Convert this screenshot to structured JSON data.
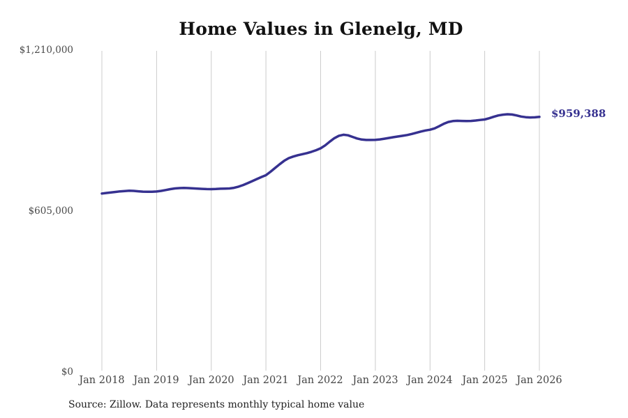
{
  "title": "Home Values in Glenelg, MD",
  "source_note": "Source: Zillow. Data represents monthly typical home value",
  "final_value_label": "$959,388",
  "colors": {
    "line": "#363190",
    "gridline": "#cccccc",
    "title_text": "#121212",
    "axis_text": "#4a4a4a",
    "background": "#ffffff"
  },
  "chart_data": {
    "type": "line",
    "title": "Home Values in Glenelg, MD",
    "series_name": "Monthly typical home value",
    "xlabel": "",
    "ylabel": "",
    "ylim": [
      0,
      1210000
    ],
    "grid": "vertical-only",
    "legend": "none",
    "line_color": "#363190",
    "final_value": 959388,
    "end_label": "$959,388",
    "y_ticks": [
      1210000,
      605000,
      0
    ],
    "y_tick_labels": [
      "$1,210,000",
      "$605,000",
      "$0"
    ],
    "x_tick_labels": [
      "Jan 2018",
      "Jan 2019",
      "Jan 2020",
      "Jan 2021",
      "Jan 2022",
      "Jan 2023",
      "Jan 2024",
      "Jan 2025",
      "Jan 2026"
    ],
    "x": [
      "2018-01",
      "2018-02",
      "2018-03",
      "2018-04",
      "2018-05",
      "2018-06",
      "2018-07",
      "2018-08",
      "2018-09",
      "2018-10",
      "2018-11",
      "2018-12",
      "2019-01",
      "2019-02",
      "2019-03",
      "2019-04",
      "2019-05",
      "2019-06",
      "2019-07",
      "2019-08",
      "2019-09",
      "2019-10",
      "2019-11",
      "2019-12",
      "2020-01",
      "2020-02",
      "2020-03",
      "2020-04",
      "2020-05",
      "2020-06",
      "2020-07",
      "2020-08",
      "2020-09",
      "2020-10",
      "2020-11",
      "2020-12",
      "2021-01",
      "2021-02",
      "2021-03",
      "2021-04",
      "2021-05",
      "2021-06",
      "2021-07",
      "2021-08",
      "2021-09",
      "2021-10",
      "2021-11",
      "2021-12",
      "2022-01",
      "2022-02",
      "2022-03",
      "2022-04",
      "2022-05",
      "2022-06",
      "2022-07",
      "2022-08",
      "2022-09",
      "2022-10",
      "2022-11",
      "2022-12",
      "2023-01",
      "2023-02",
      "2023-03",
      "2023-04",
      "2023-05",
      "2023-06",
      "2023-07",
      "2023-08",
      "2023-09",
      "2023-10",
      "2023-11",
      "2023-12",
      "2024-01",
      "2024-02",
      "2024-03",
      "2024-04",
      "2024-05",
      "2024-06",
      "2024-07",
      "2024-08",
      "2024-09",
      "2024-10",
      "2024-11",
      "2024-12",
      "2025-01",
      "2025-02",
      "2025-03",
      "2025-04",
      "2025-05",
      "2025-06",
      "2025-07",
      "2025-08",
      "2025-09",
      "2025-10",
      "2025-11",
      "2025-12",
      "2026-01"
    ],
    "values": [
      671000,
      673000,
      675000,
      677000,
      679000,
      680500,
      681500,
      681000,
      679500,
      678000,
      677500,
      677800,
      678500,
      681000,
      684000,
      687500,
      690000,
      691500,
      692000,
      691500,
      690500,
      689500,
      688500,
      687800,
      687500,
      688000,
      689000,
      689500,
      690000,
      692500,
      697000,
      703000,
      710000,
      717500,
      725500,
      733000,
      740000,
      753000,
      767000,
      781000,
      794000,
      804000,
      810000,
      815000,
      819000,
      823000,
      828000,
      834000,
      841000,
      852000,
      866000,
      879000,
      888000,
      892000,
      890000,
      884000,
      878000,
      874000,
      872500,
      872500,
      873000,
      874500,
      877000,
      880000,
      883000,
      885500,
      888000,
      891000,
      895000,
      899500,
      904000,
      908000,
      911000,
      916000,
      924000,
      933000,
      940000,
      943500,
      944500,
      944000,
      943500,
      944000,
      945500,
      947500,
      949500,
      954000,
      959500,
      964500,
      967500,
      969000,
      968000,
      964500,
      960500,
      958000,
      957000,
      957500,
      959388
    ]
  }
}
